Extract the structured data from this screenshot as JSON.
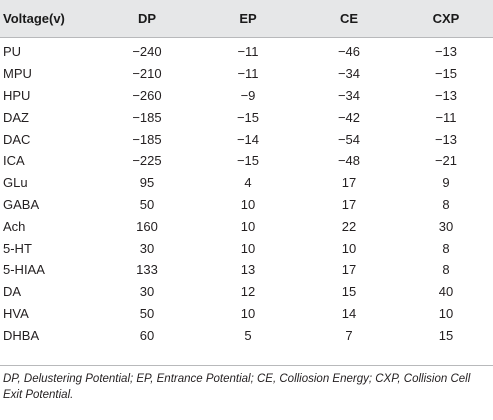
{
  "table": {
    "headers": [
      "Voltage(v)",
      "DP",
      "EP",
      "CE",
      "CXP"
    ],
    "rows": [
      [
        "PU",
        "−240",
        "−11",
        "−46",
        "−13"
      ],
      [
        "MPU",
        "−210",
        "−11",
        "−34",
        "−15"
      ],
      [
        "HPU",
        "−260",
        "−9",
        "−34",
        "−13"
      ],
      [
        "DAZ",
        "−185",
        "−15",
        "−42",
        "−11"
      ],
      [
        "DAC",
        "−185",
        "−14",
        "−54",
        "−13"
      ],
      [
        "ICA",
        "−225",
        "−15",
        "−48",
        "−21"
      ],
      [
        "GLu",
        "95",
        "4",
        "17",
        "9"
      ],
      [
        "GABA",
        "50",
        "10",
        "17",
        "8"
      ],
      [
        "Ach",
        "160",
        "10",
        "22",
        "30"
      ],
      [
        "5-HT",
        "30",
        "10",
        "10",
        "8"
      ],
      [
        "5-HIAA",
        "133",
        "13",
        "17",
        "8"
      ],
      [
        "DA",
        "30",
        "12",
        "15",
        "40"
      ],
      [
        "HVA",
        "50",
        "10",
        "14",
        "10"
      ],
      [
        "DHBA",
        "60",
        "5",
        "7",
        "15"
      ]
    ]
  },
  "footnote": "DP, Delustering Potential; EP, Entrance Potential; CE, Colliosion Energy; CXP, Collision Cell Exit Potential.",
  "colors": {
    "header_background": "#e6e7e8",
    "rule": "#b8b9bb",
    "text": "#231f20"
  }
}
